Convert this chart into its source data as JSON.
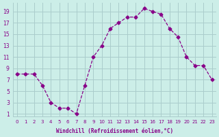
{
  "x": [
    0,
    1,
    2,
    3,
    4,
    5,
    6,
    7,
    8,
    9,
    10,
    11,
    12,
    13,
    14,
    15,
    16,
    17,
    18,
    19,
    20,
    21,
    22,
    23
  ],
  "y": [
    8,
    8,
    8,
    6,
    3,
    2,
    2,
    1,
    6,
    11,
    13,
    16,
    17,
    18,
    18,
    19.5,
    19,
    18.5,
    16,
    14.5,
    11,
    9.5,
    9.5,
    7
  ],
  "line_color": "#880088",
  "marker": "D",
  "marker_size": 2.5,
  "bg_color": "#cceee8",
  "grid_color": "#aacccc",
  "xlabel": "Windchill (Refroidissement éolien,°C)",
  "yticks": [
    1,
    3,
    5,
    7,
    9,
    11,
    13,
    15,
    17,
    19
  ],
  "xticks": [
    0,
    1,
    2,
    3,
    4,
    5,
    6,
    7,
    8,
    9,
    10,
    11,
    12,
    13,
    14,
    15,
    16,
    17,
    18,
    19,
    20,
    21,
    22,
    23
  ],
  "ylim": [
    0.5,
    20.5
  ],
  "xlim": [
    -0.5,
    23.5
  ],
  "line_color_hex": "#880088",
  "xlabel_color": "#880088",
  "tick_color": "#880088"
}
